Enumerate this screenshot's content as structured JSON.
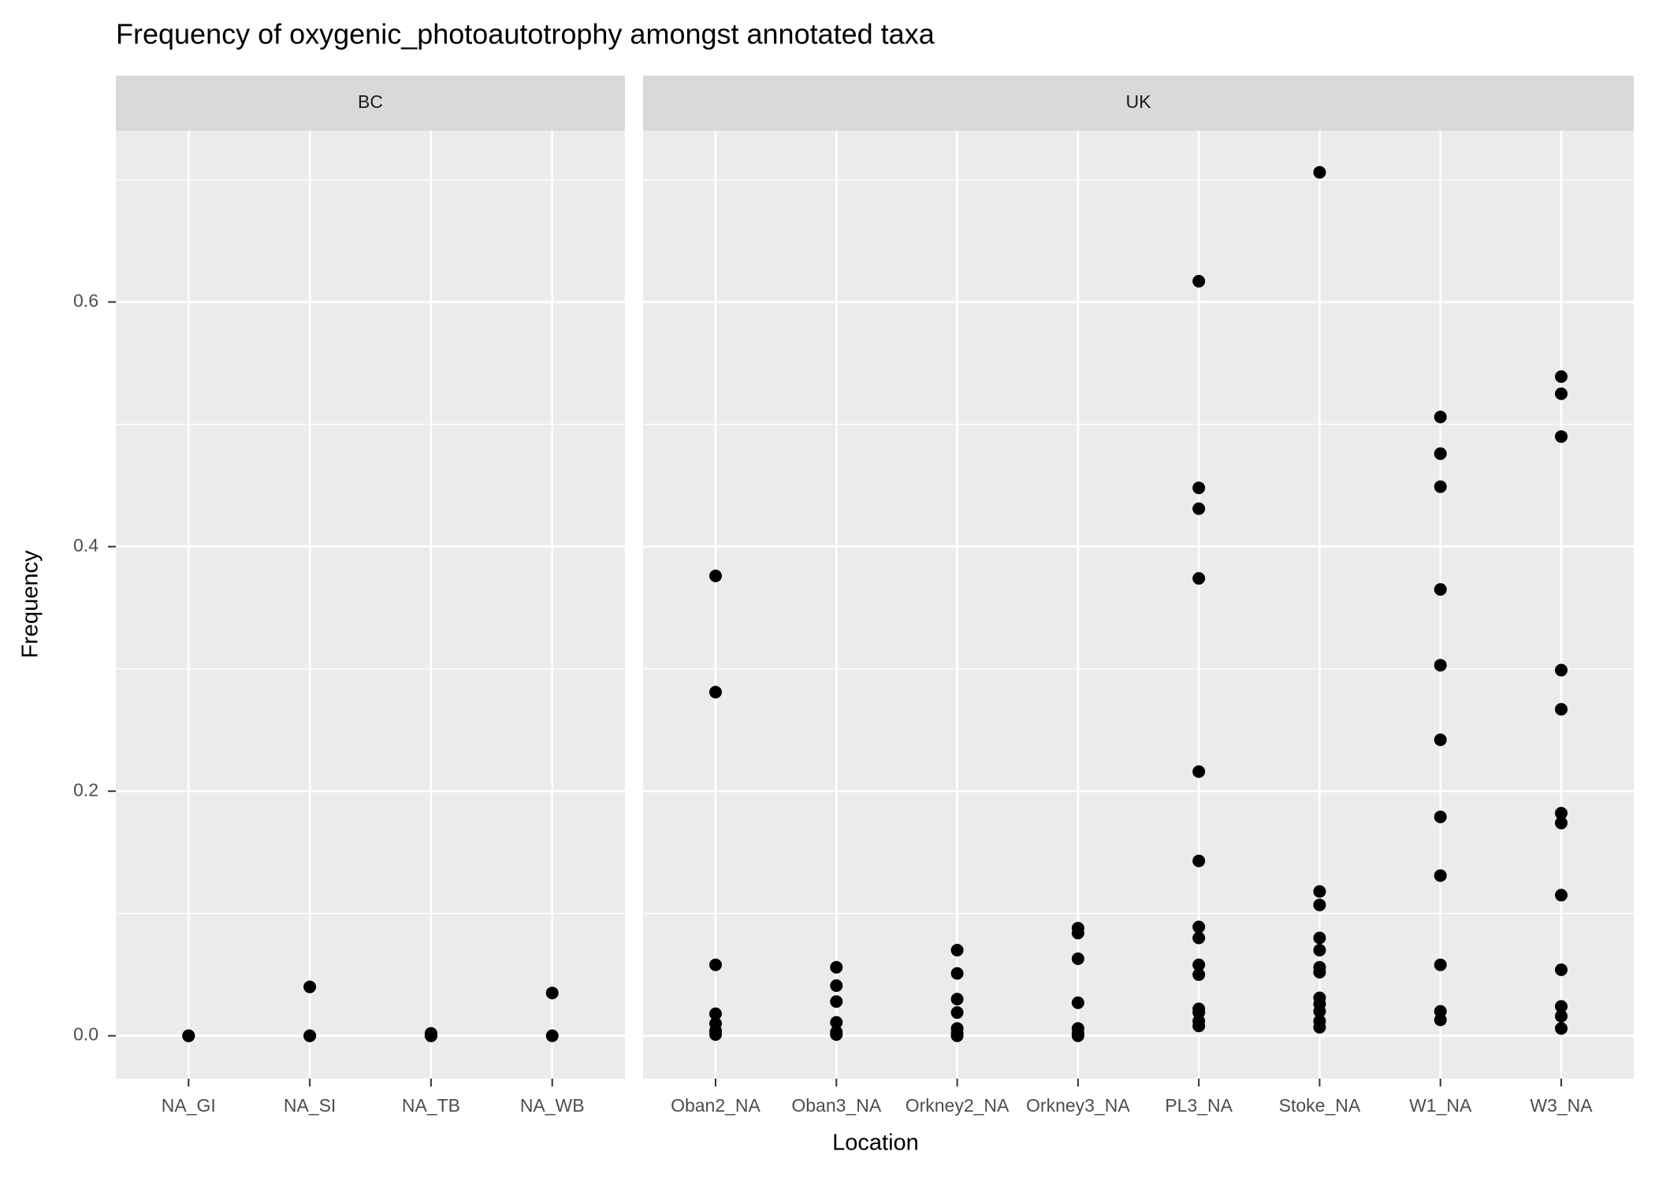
{
  "chart_data": {
    "type": "scatter",
    "title": "Frequency of oxygenic_photoautotrophy amongst annotated taxa",
    "x_label": "Location",
    "y_label": "Frequency",
    "ylim": [
      -0.035,
      0.74
    ],
    "yticks": [
      {
        "value": 0,
        "label": "0.0"
      },
      0.2,
      0.4,
      0.6
    ],
    "grid": true,
    "color": "#000000",
    "facets": [
      {
        "title": "BC",
        "categories": [
          "NA_GI",
          "NA_SI",
          "NA_TB",
          "NA_WB"
        ],
        "values": [
          [
            0,
            0,
            0
          ],
          [
            0.04,
            0,
            0
          ],
          [
            0.002,
            0,
            0
          ],
          [
            0.035,
            0
          ]
        ]
      },
      {
        "title": "UK",
        "categories": [
          "Oban2_NA",
          "Oban3_NA",
          "Orkney2_NA",
          "Orkney3_NA",
          "PL3_NA",
          "Stoke_NA",
          "W1_NA",
          "W3_NA"
        ],
        "values": [
          [
            0.376,
            0.281,
            0.058,
            0.018,
            0.01,
            0.004,
            0.001
          ],
          [
            0.056,
            0.041,
            0.028,
            0.011,
            0.003,
            0.001
          ],
          [
            0.07,
            0.051,
            0.03,
            0.019,
            0.006,
            0.002,
            0.0
          ],
          [
            0.088,
            0.084,
            0.063,
            0.027,
            0.006,
            0.002,
            0.0
          ],
          [
            0.617,
            0.448,
            0.431,
            0.374,
            0.216,
            0.143,
            0.089,
            0.08,
            0.058,
            0.05,
            0.022,
            0.019,
            0.012,
            0.008
          ],
          [
            0.706,
            0.118,
            0.107,
            0.08,
            0.07,
            0.056,
            0.052,
            0.031,
            0.026,
            0.02,
            0.012,
            0.007
          ],
          [
            0.506,
            0.476,
            0.449,
            0.365,
            0.303,
            0.242,
            0.179,
            0.131,
            0.058,
            0.02,
            0.013
          ],
          [
            0.539,
            0.525,
            0.49,
            0.299,
            0.267,
            0.182,
            0.174,
            0.115,
            0.054,
            0.024,
            0.016,
            0.006
          ]
        ]
      }
    ]
  }
}
